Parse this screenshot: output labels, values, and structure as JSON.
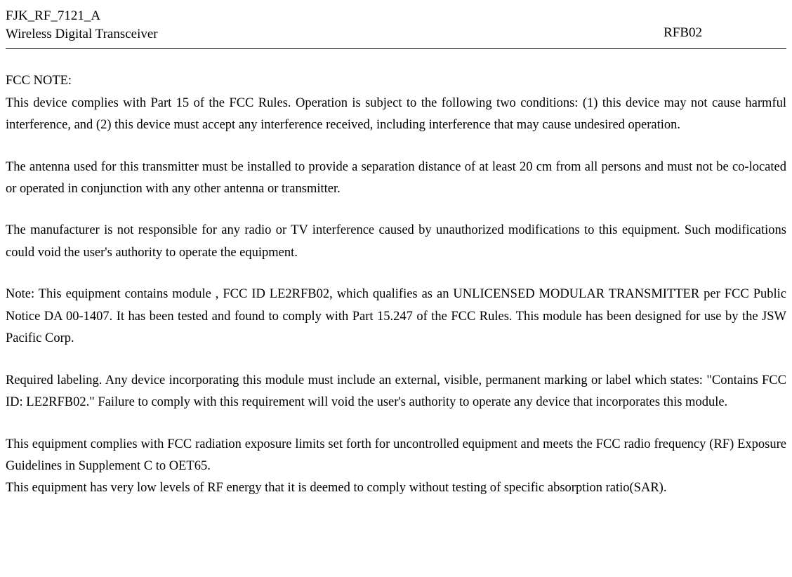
{
  "header": {
    "model_line1": "FJK_RF_7121_A",
    "model_line2": "Wireless Digital Transceiver",
    "right": "RFB02"
  },
  "notes": {
    "fcc_title": "FCC NOTE:",
    "p1": "This device complies with Part 15 of the FCC Rules. Operation is subject to the following two conditions: (1) this device may not cause harmful interference, and (2) this device must accept any interference received, including interference that may cause undesired operation.",
    "p2": "The antenna used for this transmitter must be installed to provide a separation distance of at least 20 cm from all persons and must not be co-located or operated in conjunction with any other antenna or transmitter.",
    "p3": "The manufacturer is not responsible for any radio or TV interference caused by unauthorized modifications to this equipment. Such modifications could void the user's authority to operate the equipment.",
    "p4": "Note: This equipment contains module , FCC ID LE2RFB02, which qualifies as an UNLICENSED MODULAR TRANSMITTER per FCC Public Notice DA 00-1407. It has been tested and found to comply with Part 15.247 of the FCC Rules. This module has been designed for use by the JSW Pacific Corp.",
    "p5": "Required labeling. Any device incorporating this module must include an external, visible, permanent marking or label which states: \"Contains FCC ID: LE2RFB02.\" Failure to comply with this requirement will void the user's authority to operate any device that incorporates this module.",
    "p6a": "This equipment complies with FCC radiation exposure limits set forth for uncontrolled equipment and meets the FCC radio frequency (RF) Exposure Guidelines in Supplement C to OET65.",
    "p6b": "This equipment has very low levels of RF energy that it is deemed to comply without testing of specific absorption ratio(SAR)."
  },
  "style": {
    "font_family": "Times New Roman",
    "body_font_size_pt": 14,
    "header_font_size_pt": 14,
    "line_height": 1.7,
    "text_color": "#000000",
    "background_color": "#ffffff",
    "hr_color": "#000000"
  }
}
